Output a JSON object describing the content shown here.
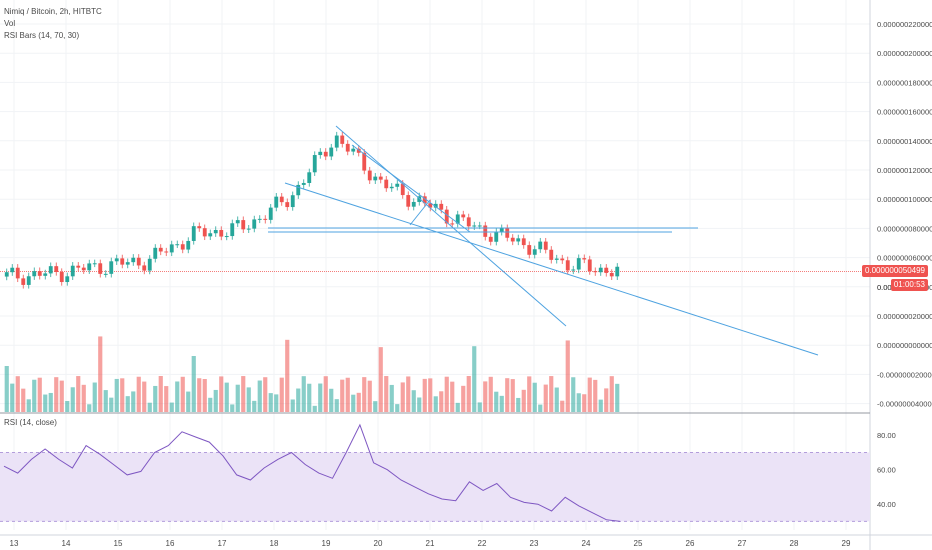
{
  "legend": {
    "symbol": "Nimiq / Bitcoin, 2h, HITBTC",
    "volume": "Vol",
    "rsi_bars": "RSI Bars (14, 70, 30)",
    "rsi": "RSI (14, close)"
  },
  "price_axis": [
    "0.000000220000",
    "0.000000200000",
    "0.000000180000",
    "0.000000160000",
    "0.000000140000",
    "0.000000120000",
    "0.000000100000",
    "0.000000080000",
    "0.000000060000",
    "0.000000040000",
    "0.000000020000",
    "0.000000000000",
    "-0.000000020000",
    "-0.000000040000"
  ],
  "price_axis_partial": "0.0000",
  "last_price": "0.000000050499",
  "countdown": "01:00:53",
  "rsi_axis": [
    "80.00",
    "60.00",
    "40.00"
  ],
  "time_axis": [
    "13",
    "14",
    "15",
    "16",
    "17",
    "18",
    "19",
    "20",
    "21",
    "22",
    "23",
    "24",
    "25",
    "26",
    "27",
    "28",
    "29"
  ],
  "colors": {
    "up": "#26a69a",
    "down": "#ef5350",
    "line": "#4fa3e0",
    "rsi": "#7e57c2",
    "rsi_band": "#ebe3f7"
  },
  "chart_data": [
    {
      "type": "candlestick",
      "title": "Nimiq / Bitcoin, 2h, HITBTC",
      "x_labels": [
        "13",
        "14",
        "15",
        "16",
        "17",
        "18",
        "19",
        "20",
        "21",
        "22",
        "23",
        "24"
      ],
      "close_values": [
        4.7e-08,
        4.9e-08,
        5.4e-08,
        5.8e-08,
        7.6e-08,
        8e-08,
        1e-07,
        1.43e-07,
        1.1e-07,
        9.5e-08,
        8e-08,
        7e-08,
        5.5e-08,
        5.0499e-08
      ],
      "ylim": [
        -4.5e-08,
        2.25e-07
      ]
    },
    {
      "type": "line",
      "title": "RSI (14, close)",
      "ylim": [
        25,
        90
      ],
      "values": [
        62,
        58,
        66,
        72,
        66,
        61,
        74,
        69,
        63,
        57,
        59,
        70,
        74,
        82,
        79,
        76,
        68,
        57,
        54,
        61,
        66,
        70,
        63,
        58,
        55,
        70,
        86,
        64,
        60,
        54,
        50,
        46,
        43,
        42,
        53,
        48,
        52,
        44,
        41,
        40,
        36,
        44,
        39,
        35,
        31,
        30
      ]
    }
  ]
}
